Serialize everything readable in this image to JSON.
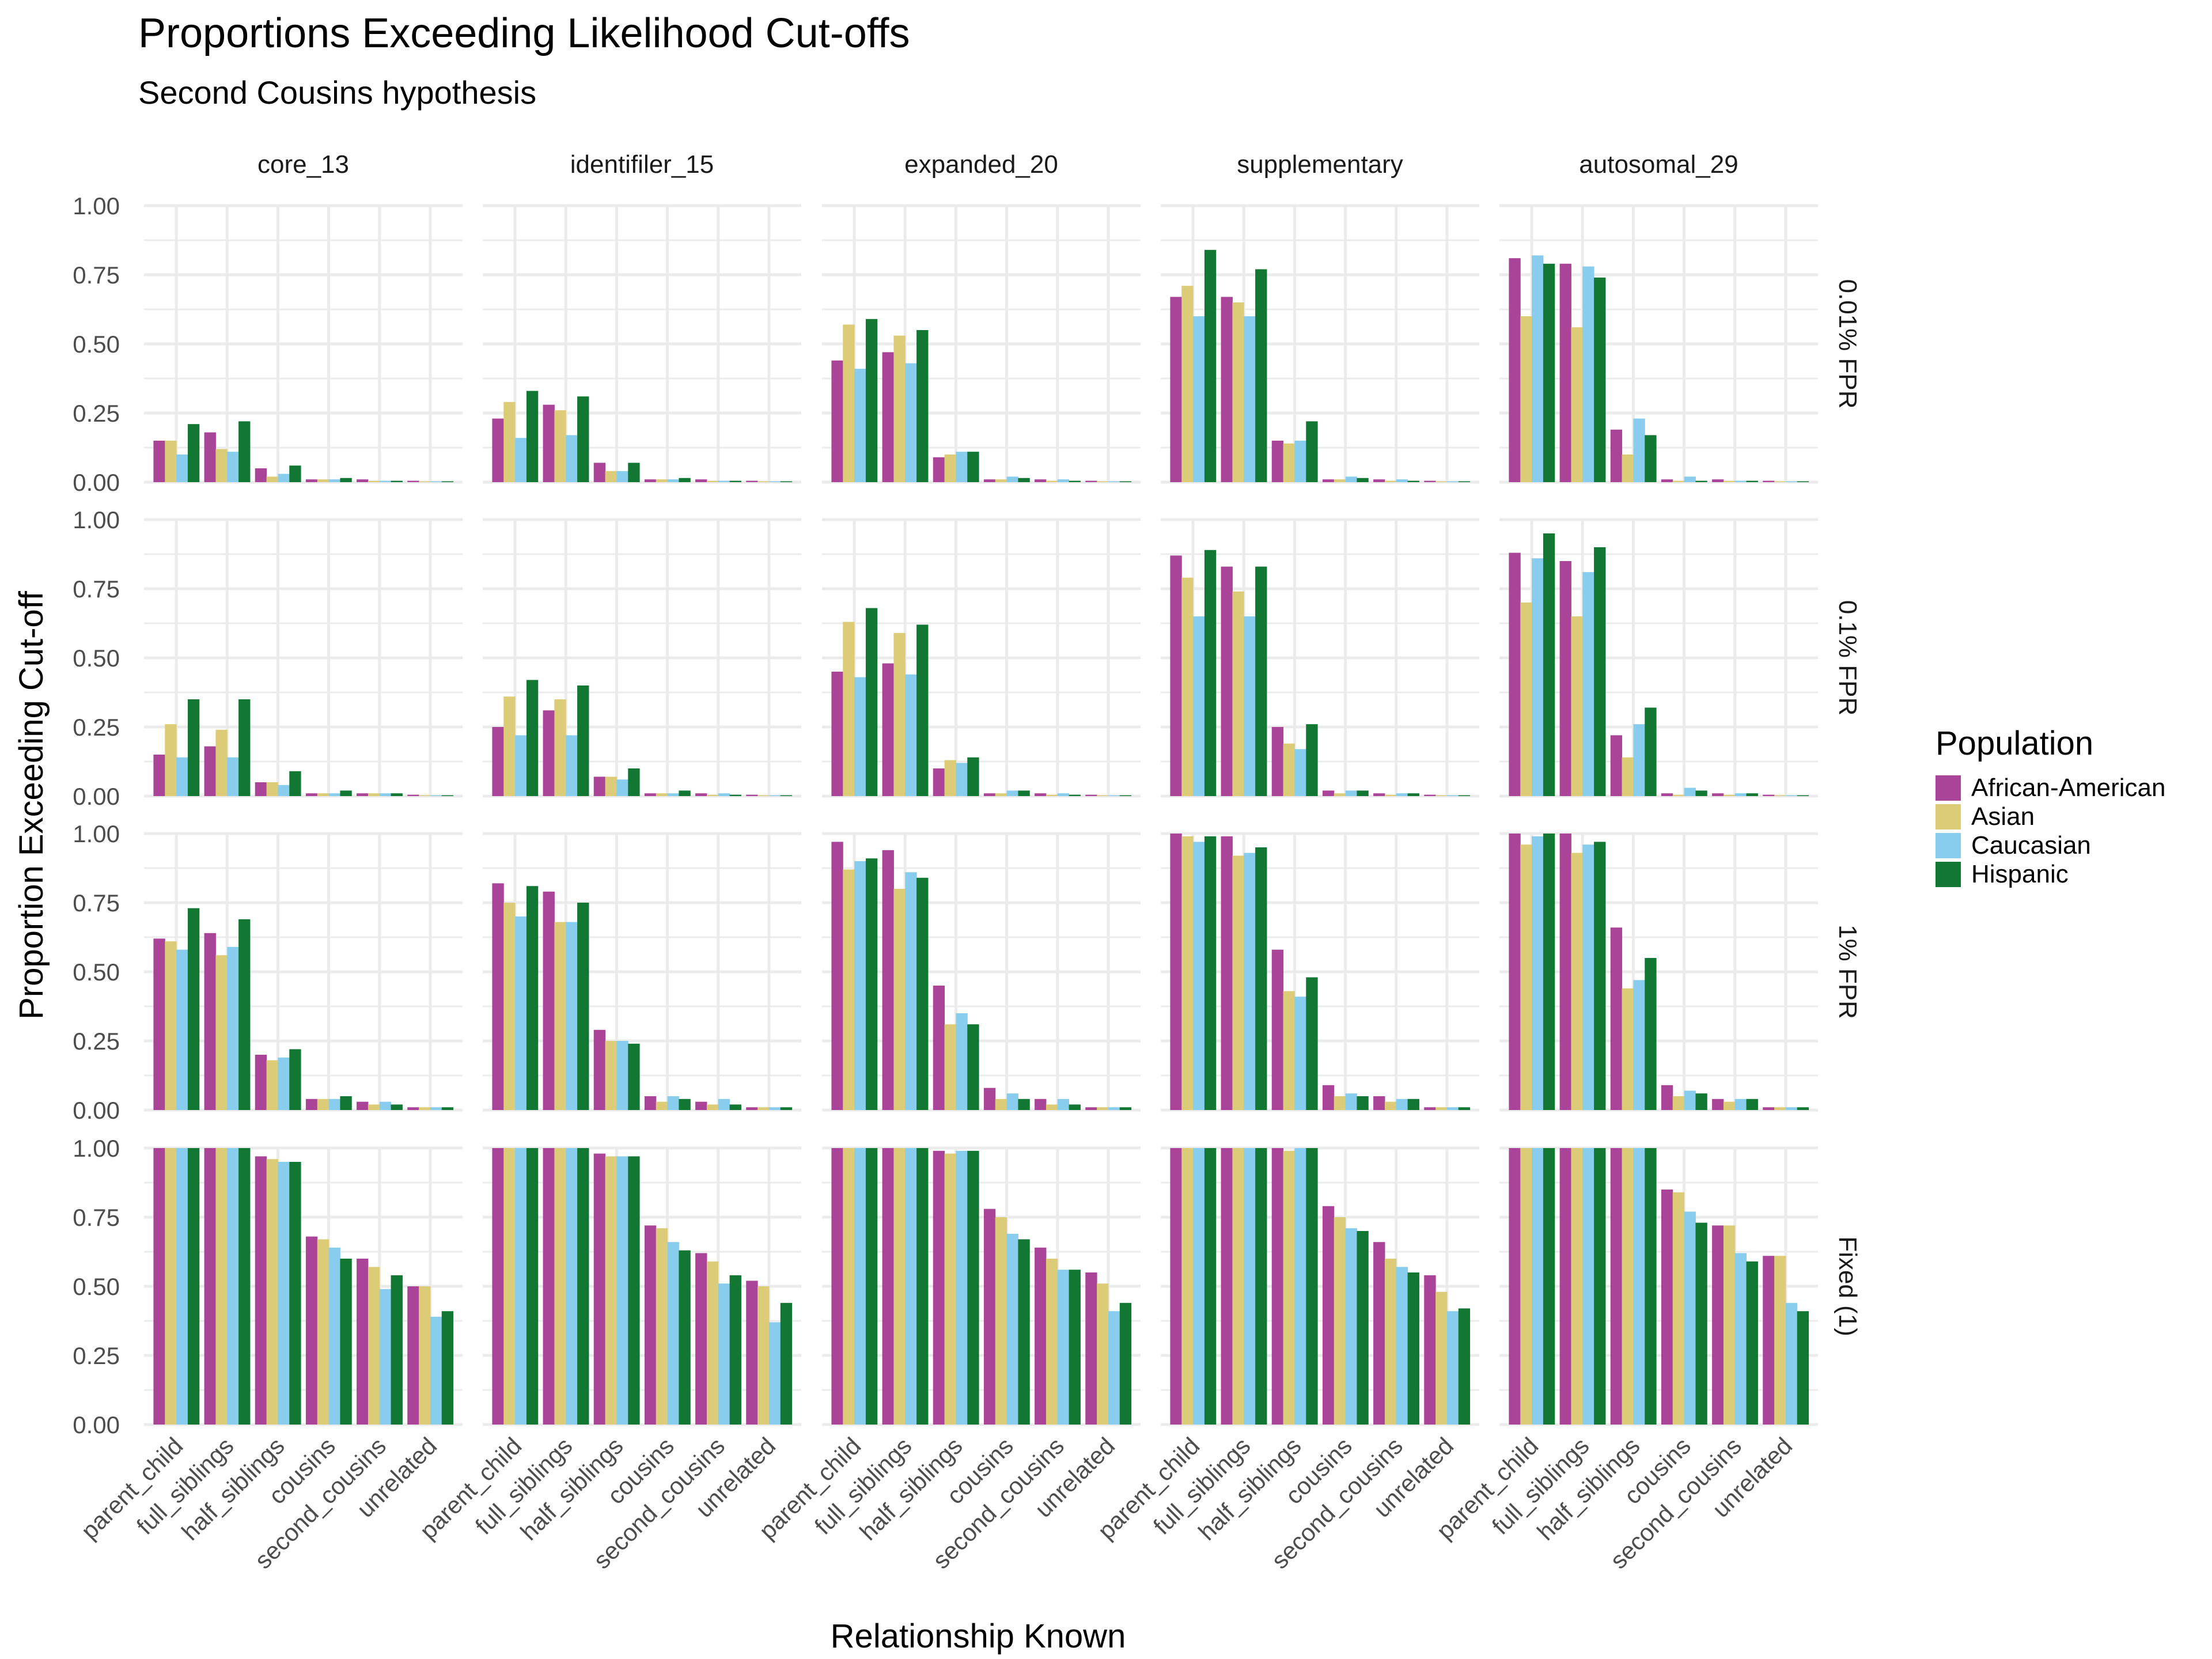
{
  "chart_data": {
    "type": "bar",
    "title": "Proportions Exceeding Likelihood Cut-offs",
    "subtitle": "Second Cousins hypothesis",
    "xlabel": "Relationship Known",
    "ylabel": "Proportion Exceeding Cut-off",
    "ylim": [
      0,
      1.0
    ],
    "yticks": [
      "0.00",
      "0.25",
      "0.50",
      "0.75",
      "1.00"
    ],
    "grid": true,
    "legend_title": "Population",
    "legend_position": "right",
    "categories": [
      "parent_child",
      "full_siblings",
      "half_siblings",
      "cousins",
      "second_cousins",
      "unrelated"
    ],
    "series": [
      {
        "name": "African-American",
        "color": "#AA4499"
      },
      {
        "name": "Asian",
        "color": "#DDCC77"
      },
      {
        "name": "Caucasian",
        "color": "#88CCEE"
      },
      {
        "name": "Hispanic",
        "color": "#117733"
      }
    ],
    "col_panels": [
      "core_13",
      "identifiler_15",
      "expanded_20",
      "supplementary",
      "autosomal_29"
    ],
    "row_panels": [
      "0.01% FPR",
      "0.1% FPR",
      "1% FPR",
      "Fixed (1)"
    ],
    "panels": {
      "0.01% FPR": {
        "core_13": [
          [
            0.15,
            0.15,
            0.1,
            0.21
          ],
          [
            0.18,
            0.12,
            0.11,
            0.22
          ],
          [
            0.05,
            0.02,
            0.03,
            0.06
          ],
          [
            0.01,
            0.01,
            0.01,
            0.015
          ],
          [
            0.01,
            0.005,
            0.005,
            0.005
          ],
          [
            0.005,
            0.003,
            0.003,
            0.003
          ]
        ],
        "identifiler_15": [
          [
            0.23,
            0.29,
            0.16,
            0.33
          ],
          [
            0.28,
            0.26,
            0.17,
            0.31
          ],
          [
            0.07,
            0.04,
            0.04,
            0.07
          ],
          [
            0.01,
            0.01,
            0.01,
            0.015
          ],
          [
            0.01,
            0.005,
            0.005,
            0.005
          ],
          [
            0.005,
            0.003,
            0.003,
            0.003
          ]
        ],
        "expanded_20": [
          [
            0.44,
            0.57,
            0.41,
            0.59
          ],
          [
            0.47,
            0.53,
            0.43,
            0.55
          ],
          [
            0.09,
            0.1,
            0.11,
            0.11
          ],
          [
            0.01,
            0.01,
            0.02,
            0.015
          ],
          [
            0.01,
            0.005,
            0.01,
            0.005
          ],
          [
            0.005,
            0.003,
            0.003,
            0.003
          ]
        ],
        "supplementary": [
          [
            0.67,
            0.71,
            0.6,
            0.84
          ],
          [
            0.67,
            0.65,
            0.6,
            0.77
          ],
          [
            0.15,
            0.14,
            0.15,
            0.22
          ],
          [
            0.01,
            0.01,
            0.02,
            0.015
          ],
          [
            0.01,
            0.005,
            0.01,
            0.005
          ],
          [
            0.005,
            0.003,
            0.003,
            0.003
          ]
        ],
        "autosomal_29": [
          [
            0.81,
            0.6,
            0.82,
            0.79
          ],
          [
            0.79,
            0.56,
            0.78,
            0.74
          ],
          [
            0.19,
            0.1,
            0.23,
            0.17
          ],
          [
            0.01,
            0.005,
            0.02,
            0.005
          ],
          [
            0.01,
            0.005,
            0.005,
            0.005
          ],
          [
            0.005,
            0.003,
            0.003,
            0.003
          ]
        ]
      },
      "0.1% FPR": {
        "core_13": [
          [
            0.15,
            0.26,
            0.14,
            0.35
          ],
          [
            0.18,
            0.24,
            0.14,
            0.35
          ],
          [
            0.05,
            0.05,
            0.04,
            0.09
          ],
          [
            0.01,
            0.01,
            0.01,
            0.02
          ],
          [
            0.01,
            0.01,
            0.01,
            0.01
          ],
          [
            0.005,
            0.003,
            0.003,
            0.003
          ]
        ],
        "identifiler_15": [
          [
            0.25,
            0.36,
            0.22,
            0.42
          ],
          [
            0.31,
            0.35,
            0.22,
            0.4
          ],
          [
            0.07,
            0.07,
            0.06,
            0.1
          ],
          [
            0.01,
            0.01,
            0.01,
            0.02
          ],
          [
            0.01,
            0.005,
            0.01,
            0.005
          ],
          [
            0.005,
            0.003,
            0.003,
            0.003
          ]
        ],
        "expanded_20": [
          [
            0.45,
            0.63,
            0.43,
            0.68
          ],
          [
            0.48,
            0.59,
            0.44,
            0.62
          ],
          [
            0.1,
            0.13,
            0.12,
            0.14
          ],
          [
            0.01,
            0.01,
            0.02,
            0.02
          ],
          [
            0.01,
            0.005,
            0.01,
            0.005
          ],
          [
            0.005,
            0.003,
            0.003,
            0.003
          ]
        ],
        "supplementary": [
          [
            0.87,
            0.79,
            0.65,
            0.89
          ],
          [
            0.83,
            0.74,
            0.65,
            0.83
          ],
          [
            0.25,
            0.19,
            0.17,
            0.26
          ],
          [
            0.02,
            0.01,
            0.02,
            0.02
          ],
          [
            0.01,
            0.005,
            0.01,
            0.01
          ],
          [
            0.005,
            0.003,
            0.003,
            0.003
          ]
        ],
        "autosomal_29": [
          [
            0.88,
            0.7,
            0.86,
            0.95
          ],
          [
            0.85,
            0.65,
            0.81,
            0.9
          ],
          [
            0.22,
            0.14,
            0.26,
            0.32
          ],
          [
            0.01,
            0.005,
            0.03,
            0.02
          ],
          [
            0.01,
            0.005,
            0.01,
            0.01
          ],
          [
            0.005,
            0.003,
            0.003,
            0.003
          ]
        ]
      },
      "1% FPR": {
        "core_13": [
          [
            0.62,
            0.61,
            0.58,
            0.73
          ],
          [
            0.64,
            0.56,
            0.59,
            0.69
          ],
          [
            0.2,
            0.18,
            0.19,
            0.22
          ],
          [
            0.04,
            0.04,
            0.04,
            0.05
          ],
          [
            0.03,
            0.02,
            0.03,
            0.02
          ],
          [
            0.01,
            0.01,
            0.01,
            0.01
          ]
        ],
        "identifiler_15": [
          [
            0.82,
            0.75,
            0.7,
            0.81
          ],
          [
            0.79,
            0.68,
            0.68,
            0.75
          ],
          [
            0.29,
            0.25,
            0.25,
            0.24
          ],
          [
            0.05,
            0.03,
            0.05,
            0.04
          ],
          [
            0.03,
            0.02,
            0.04,
            0.02
          ],
          [
            0.01,
            0.01,
            0.01,
            0.01
          ]
        ],
        "expanded_20": [
          [
            0.97,
            0.87,
            0.9,
            0.91
          ],
          [
            0.94,
            0.8,
            0.86,
            0.84
          ],
          [
            0.45,
            0.31,
            0.35,
            0.31
          ],
          [
            0.08,
            0.04,
            0.06,
            0.04
          ],
          [
            0.04,
            0.02,
            0.04,
            0.02
          ],
          [
            0.01,
            0.01,
            0.01,
            0.01
          ]
        ],
        "supplementary": [
          [
            1.0,
            0.99,
            0.97,
            0.99
          ],
          [
            0.99,
            0.92,
            0.93,
            0.95
          ],
          [
            0.58,
            0.43,
            0.41,
            0.48
          ],
          [
            0.09,
            0.05,
            0.06,
            0.05
          ],
          [
            0.05,
            0.03,
            0.04,
            0.04
          ],
          [
            0.01,
            0.01,
            0.01,
            0.01
          ]
        ],
        "autosomal_29": [
          [
            1.0,
            0.96,
            0.99,
            1.0
          ],
          [
            1.0,
            0.93,
            0.96,
            0.97
          ],
          [
            0.66,
            0.44,
            0.47,
            0.55
          ],
          [
            0.09,
            0.05,
            0.07,
            0.06
          ],
          [
            0.04,
            0.03,
            0.04,
            0.04
          ],
          [
            0.01,
            0.01,
            0.01,
            0.01
          ]
        ]
      },
      "Fixed (1)": {
        "core_13": [
          [
            1.0,
            1.0,
            1.0,
            1.0
          ],
          [
            1.0,
            1.0,
            1.0,
            1.0
          ],
          [
            0.97,
            0.96,
            0.95,
            0.95
          ],
          [
            0.68,
            0.67,
            0.64,
            0.6
          ],
          [
            0.6,
            0.57,
            0.49,
            0.54
          ],
          [
            0.5,
            0.5,
            0.39,
            0.41
          ]
        ],
        "identifiler_15": [
          [
            1.0,
            1.0,
            1.0,
            1.0
          ],
          [
            1.0,
            1.0,
            1.0,
            1.0
          ],
          [
            0.98,
            0.97,
            0.97,
            0.97
          ],
          [
            0.72,
            0.71,
            0.66,
            0.63
          ],
          [
            0.62,
            0.59,
            0.51,
            0.54
          ],
          [
            0.52,
            0.5,
            0.37,
            0.44
          ]
        ],
        "expanded_20": [
          [
            1.0,
            1.0,
            1.0,
            1.0
          ],
          [
            1.0,
            1.0,
            1.0,
            1.0
          ],
          [
            0.99,
            0.98,
            0.99,
            0.99
          ],
          [
            0.78,
            0.75,
            0.69,
            0.67
          ],
          [
            0.64,
            0.6,
            0.56,
            0.56
          ],
          [
            0.55,
            0.51,
            0.41,
            0.44
          ]
        ],
        "supplementary": [
          [
            1.0,
            1.0,
            1.0,
            1.0
          ],
          [
            1.0,
            1.0,
            1.0,
            1.0
          ],
          [
            1.0,
            0.99,
            1.0,
            1.0
          ],
          [
            0.79,
            0.75,
            0.71,
            0.7
          ],
          [
            0.66,
            0.6,
            0.57,
            0.55
          ],
          [
            0.54,
            0.48,
            0.41,
            0.42
          ]
        ],
        "autosomal_29": [
          [
            1.0,
            1.0,
            1.0,
            1.0
          ],
          [
            1.0,
            1.0,
            1.0,
            1.0
          ],
          [
            1.0,
            1.0,
            1.0,
            1.0
          ],
          [
            0.85,
            0.84,
            0.77,
            0.73
          ],
          [
            0.72,
            0.72,
            0.62,
            0.59
          ],
          [
            0.61,
            0.61,
            0.44,
            0.41
          ]
        ]
      }
    }
  }
}
